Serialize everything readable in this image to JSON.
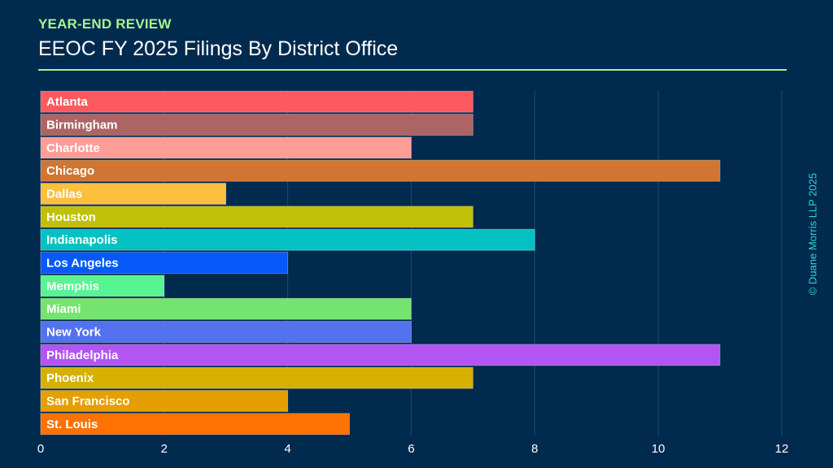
{
  "header": {
    "kicker": "YEAR-END REVIEW",
    "title": "EEOC FY 2025 Filings By District Office"
  },
  "watermark": "© Duane Morris LLP 2025",
  "colors": {
    "background": "#002a4e",
    "accent": "#a6f48c",
    "grid": "#23486a",
    "watermark": "#2fd6d6"
  },
  "chart_data": {
    "type": "bar",
    "orientation": "horizontal",
    "categories": [
      "Atlanta",
      "Birmingham",
      "Charlotte",
      "Chicago",
      "Dallas",
      "Houston",
      "Indianapolis",
      "Los Angeles",
      "Memphis",
      "Miami",
      "New York",
      "Philadelphia",
      "Phoenix",
      "San Francisco",
      "St. Louis"
    ],
    "values": [
      7,
      7,
      6,
      11,
      3,
      7,
      8,
      4,
      2,
      6,
      6,
      11,
      7,
      4,
      5
    ],
    "colors": [
      "#fd5a5f",
      "#ad6464",
      "#fe9c96",
      "#d07532",
      "#fdbf3c",
      "#c0c008",
      "#05c2c2",
      "#0559f9",
      "#58f492",
      "#74e46e",
      "#5372f0",
      "#b255f3",
      "#d6b103",
      "#e59f03",
      "#fd7203"
    ],
    "xlim": [
      0,
      12
    ],
    "xticks": [
      0,
      2,
      4,
      6,
      8,
      10,
      12
    ],
    "grid": true
  }
}
